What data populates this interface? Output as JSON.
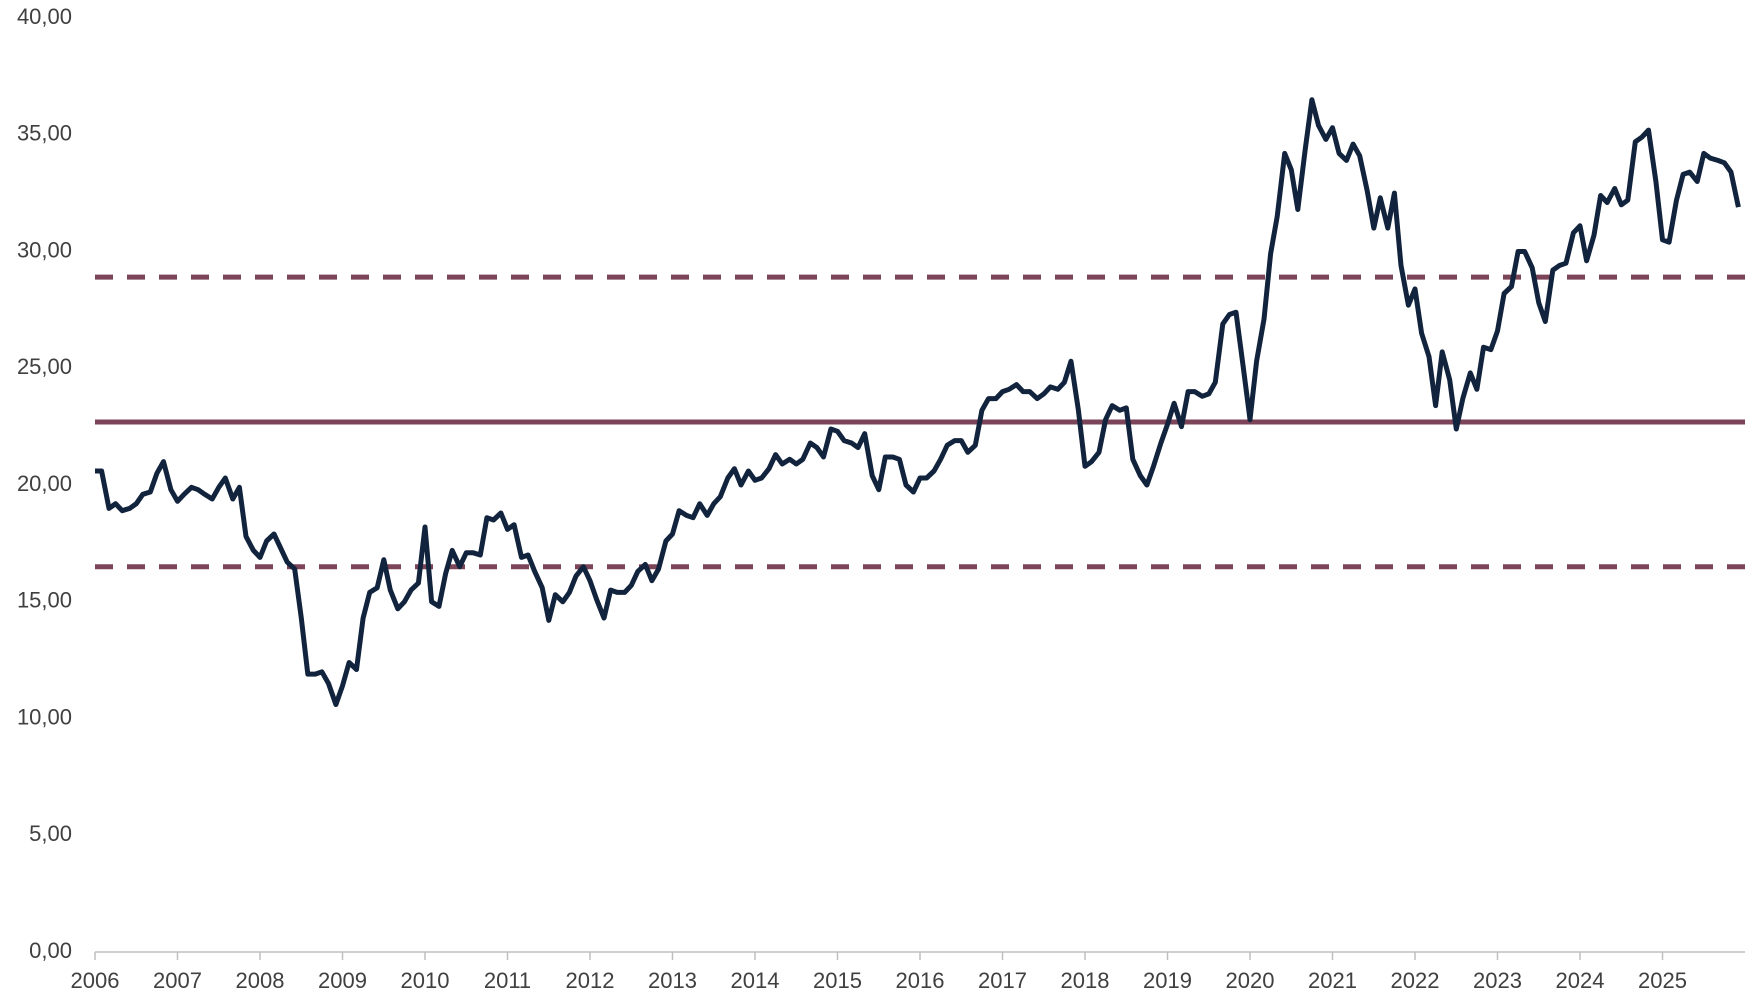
{
  "chart_data": {
    "type": "line",
    "x": [
      2006,
      2006.08,
      2006.17,
      2006.25,
      2006.33,
      2006.42,
      2006.5,
      2006.58,
      2006.67,
      2006.75,
      2006.83,
      2006.92,
      2007,
      2007.08,
      2007.17,
      2007.25,
      2007.33,
      2007.42,
      2007.5,
      2007.58,
      2007.67,
      2007.75,
      2007.83,
      2007.92,
      2008,
      2008.08,
      2008.17,
      2008.25,
      2008.33,
      2008.42,
      2008.5,
      2008.58,
      2008.67,
      2008.75,
      2008.83,
      2008.92,
      2009,
      2009.08,
      2009.17,
      2009.25,
      2009.33,
      2009.42,
      2009.5,
      2009.58,
      2009.67,
      2009.75,
      2009.83,
      2009.92,
      2010,
      2010.08,
      2010.17,
      2010.25,
      2010.33,
      2010.42,
      2010.5,
      2010.58,
      2010.67,
      2010.75,
      2010.83,
      2010.92,
      2011,
      2011.08,
      2011.17,
      2011.25,
      2011.33,
      2011.42,
      2011.5,
      2011.58,
      2011.67,
      2011.75,
      2011.83,
      2011.92,
      2012,
      2012.08,
      2012.17,
      2012.25,
      2012.33,
      2012.42,
      2012.5,
      2012.58,
      2012.67,
      2012.75,
      2012.83,
      2012.92,
      2013,
      2013.08,
      2013.17,
      2013.25,
      2013.33,
      2013.42,
      2013.5,
      2013.58,
      2013.67,
      2013.75,
      2013.83,
      2013.92,
      2014,
      2014.08,
      2014.17,
      2014.25,
      2014.33,
      2014.42,
      2014.5,
      2014.58,
      2014.67,
      2014.75,
      2014.83,
      2014.92,
      2015,
      2015.08,
      2015.17,
      2015.25,
      2015.33,
      2015.42,
      2015.5,
      2015.58,
      2015.67,
      2015.75,
      2015.83,
      2015.92,
      2016,
      2016.08,
      2016.17,
      2016.25,
      2016.33,
      2016.42,
      2016.5,
      2016.58,
      2016.67,
      2016.75,
      2016.83,
      2016.92,
      2017,
      2017.08,
      2017.17,
      2017.25,
      2017.33,
      2017.42,
      2017.5,
      2017.58,
      2017.67,
      2017.75,
      2017.83,
      2017.92,
      2018,
      2018.08,
      2018.17,
      2018.25,
      2018.33,
      2018.42,
      2018.5,
      2018.58,
      2018.67,
      2018.75,
      2018.83,
      2018.92,
      2019,
      2019.08,
      2019.17,
      2019.25,
      2019.33,
      2019.42,
      2019.5,
      2019.58,
      2019.67,
      2019.75,
      2019.83,
      2019.92,
      2020,
      2020.08,
      2020.17,
      2020.25,
      2020.33,
      2020.42,
      2020.5,
      2020.58,
      2020.67,
      2020.75,
      2020.83,
      2020.92,
      2021,
      2021.08,
      2021.17,
      2021.25,
      2021.33,
      2021.42,
      2021.5,
      2021.58,
      2021.67,
      2021.75,
      2021.83,
      2021.92,
      2022,
      2022.08,
      2022.17,
      2022.25,
      2022.33,
      2022.42,
      2022.5,
      2022.58,
      2022.67,
      2022.75,
      2022.83,
      2022.92,
      2023,
      2023.08,
      2023.17,
      2023.25,
      2023.33,
      2023.42,
      2023.5,
      2023.58,
      2023.67,
      2023.75,
      2023.83,
      2023.92,
      2024,
      2024.08,
      2024.17,
      2024.25,
      2024.33,
      2024.42,
      2024.5,
      2024.58,
      2024.67,
      2024.75,
      2024.83,
      2024.92,
      2025,
      2025.08,
      2025.17,
      2025.25,
      2025.33,
      2025.42,
      2025.5,
      2025.58,
      2025.67,
      2025.75,
      2025.83,
      2025.92
    ],
    "series": [
      {
        "color": "#12243d",
        "values": [
          20.6,
          20.6,
          19.0,
          19.2,
          18.9,
          19.0,
          19.2,
          19.6,
          19.7,
          20.5,
          21.0,
          19.8,
          19.3,
          19.6,
          19.9,
          19.8,
          19.6,
          19.4,
          19.9,
          20.3,
          19.4,
          19.9,
          17.8,
          17.2,
          16.9,
          17.6,
          17.9,
          17.3,
          16.7,
          16.4,
          14.3,
          11.9,
          11.9,
          12.0,
          11.5,
          10.6,
          11.4,
          12.4,
          12.1,
          14.3,
          15.4,
          15.6,
          16.8,
          15.5,
          14.7,
          15.0,
          15.5,
          15.8,
          18.2,
          15.0,
          14.8,
          16.2,
          17.2,
          16.5,
          17.1,
          17.1,
          17.0,
          18.6,
          18.5,
          18.8,
          18.1,
          18.3,
          16.9,
          17.0,
          16.3,
          15.6,
          14.2,
          15.3,
          15.0,
          15.4,
          16.1,
          16.5,
          15.9,
          15.1,
          14.3,
          15.5,
          15.4,
          15.4,
          15.7,
          16.3,
          16.6,
          15.9,
          16.4,
          17.6,
          17.9,
          18.9,
          18.7,
          18.6,
          19.2,
          18.7,
          19.2,
          19.5,
          20.3,
          20.7,
          20.0,
          20.6,
          20.2,
          20.3,
          20.7,
          21.3,
          20.9,
          21.1,
          20.9,
          21.1,
          21.8,
          21.6,
          21.2,
          22.4,
          22.3,
          21.9,
          21.8,
          21.6,
          22.2,
          20.4,
          19.8,
          21.2,
          21.2,
          21.1,
          20.0,
          19.7,
          20.3,
          20.3,
          20.6,
          21.1,
          21.7,
          21.9,
          21.9,
          21.4,
          21.7,
          23.2,
          23.7,
          23.7,
          24.0,
          24.1,
          24.3,
          24.0,
          24.0,
          23.7,
          23.9,
          24.2,
          24.1,
          24.4,
          25.3,
          23.2,
          20.8,
          21.0,
          21.4,
          22.8,
          23.4,
          23.2,
          23.3,
          21.1,
          20.4,
          20.0,
          20.8,
          21.8,
          22.6,
          23.5,
          22.5,
          24.0,
          24.0,
          23.8,
          23.9,
          24.4,
          26.9,
          27.3,
          27.4,
          25.0,
          22.8,
          25.3,
          27.1,
          29.9,
          31.5,
          34.2,
          33.5,
          31.8,
          34.4,
          36.5,
          35.4,
          34.8,
          35.3,
          34.2,
          33.9,
          34.6,
          34.1,
          32.6,
          31.0,
          32.3,
          31.0,
          32.5,
          29.4,
          27.7,
          28.4,
          26.5,
          25.5,
          23.4,
          25.7,
          24.5,
          22.4,
          23.7,
          24.8,
          24.1,
          25.9,
          25.8,
          26.6,
          28.2,
          28.5,
          30.0,
          30.0,
          29.3,
          27.8,
          27.0,
          29.2,
          29.4,
          29.5,
          30.8,
          31.1,
          29.6,
          30.7,
          32.4,
          32.1,
          32.7,
          32.0,
          32.2,
          34.7,
          34.9,
          35.2,
          33.0,
          30.5,
          30.4,
          32.2,
          33.3,
          33.4,
          33.0,
          34.2,
          34.0,
          33.9,
          33.8,
          33.4,
          31.9
        ]
      }
    ],
    "hlines": [
      {
        "value": 22.7,
        "style": "solid",
        "color": "#7b4458"
      },
      {
        "value": 28.9,
        "style": "dashed",
        "color": "#7b4458"
      },
      {
        "value": 16.5,
        "style": "dashed",
        "color": "#7b4458"
      }
    ],
    "xlim": [
      2006,
      2026
    ],
    "xticks": [
      2006,
      2007,
      2008,
      2009,
      2010,
      2011,
      2012,
      2013,
      2014,
      2015,
      2016,
      2017,
      2018,
      2019,
      2020,
      2021,
      2022,
      2023,
      2024,
      2025
    ],
    "ylim": [
      0,
      40
    ],
    "yticks": [
      {
        "value": 0,
        "label": "0,00"
      },
      {
        "value": 5,
        "label": "5,00"
      },
      {
        "value": 10,
        "label": "10,00"
      },
      {
        "value": 15,
        "label": "15,00"
      },
      {
        "value": 20,
        "label": "20,00"
      },
      {
        "value": 25,
        "label": "25,00"
      },
      {
        "value": 30,
        "label": "30,00"
      },
      {
        "value": 35,
        "label": "35,00"
      },
      {
        "value": 40,
        "label": "40,00"
      }
    ],
    "grid": false
  }
}
